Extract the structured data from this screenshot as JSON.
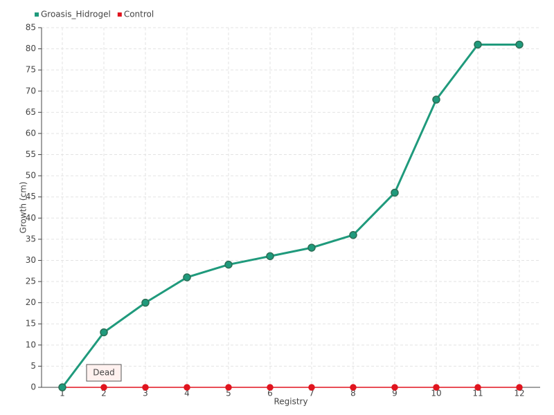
{
  "chart_data": {
    "type": "line",
    "categories": [
      "1",
      "2",
      "3",
      "4",
      "5",
      "6",
      "7",
      "8",
      "9",
      "10",
      "11",
      "12"
    ],
    "series": [
      {
        "name": "Groasis_Hidrogel",
        "color": "#1f9a7c",
        "values": [
          0,
          13,
          20,
          26,
          29,
          31,
          33,
          36,
          46,
          68,
          81,
          81
        ]
      },
      {
        "name": "Control",
        "color": "#e0141e",
        "values": [
          0,
          0,
          0,
          0,
          0,
          0,
          0,
          0,
          0,
          0,
          0,
          0
        ]
      }
    ],
    "ylim": [
      0,
      85
    ],
    "yticks": [
      0,
      5,
      10,
      15,
      20,
      25,
      30,
      35,
      40,
      45,
      50,
      55,
      60,
      65,
      70,
      75,
      80,
      85
    ],
    "x_label": "Registry",
    "y_label": "Growth (cm)",
    "annotation": "Dead",
    "grid": true,
    "legend": "top-left"
  }
}
